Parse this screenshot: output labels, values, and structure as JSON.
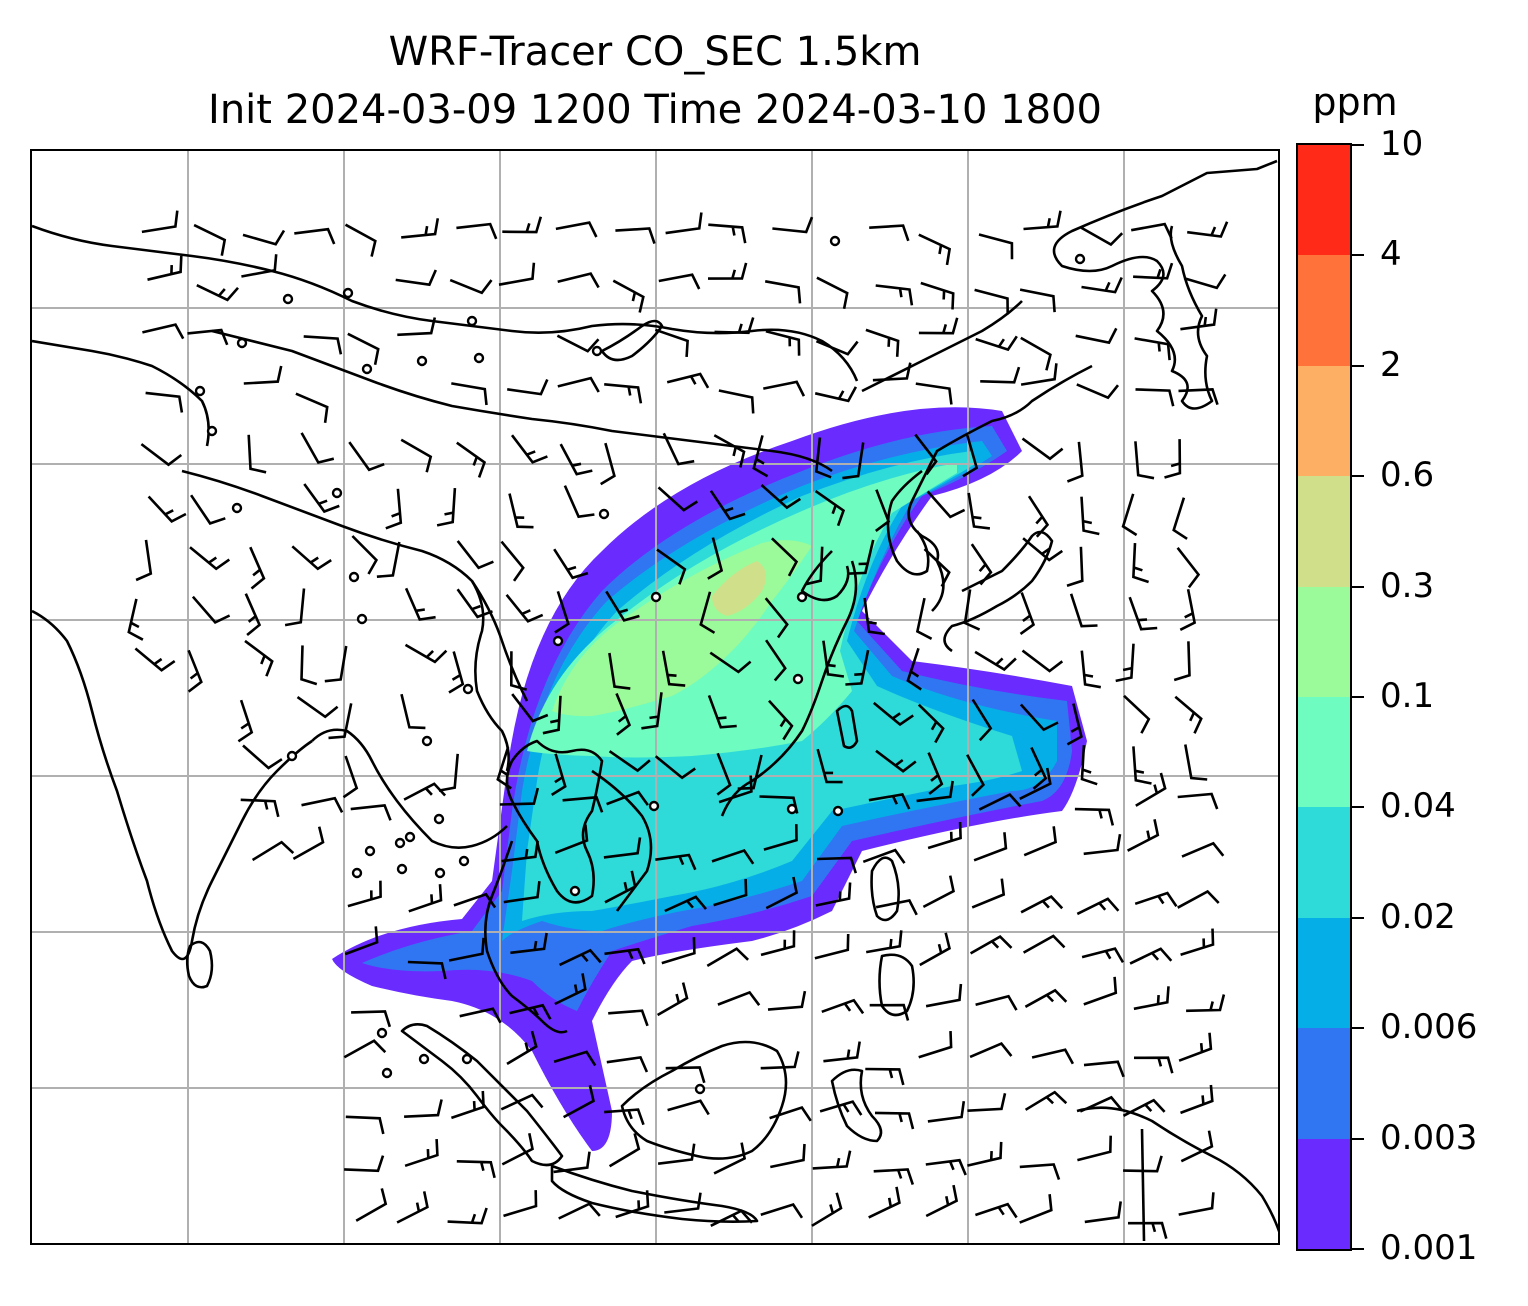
{
  "title": {
    "line1": "WRF-Tracer CO_SEC 1.5km",
    "line2": "Init 2024-03-09 1200 Time 2024-03-10 1800"
  },
  "colorbar": {
    "units": "ppm",
    "levels": [
      "0.001",
      "0.003",
      "0.006",
      "0.02",
      "0.04",
      "0.1",
      "0.3",
      "0.6",
      "2",
      "4",
      "10"
    ],
    "colors": [
      "#6a2bff",
      "#3076f2",
      "#06aee8",
      "#2edbd8",
      "#6efcc0",
      "#9bfa99",
      "#d0e08a",
      "#fdb063",
      "#ff733b",
      "#ff2a17"
    ]
  },
  "map": {
    "gridline_color": "#b0b0b0",
    "coastline_color": "#000000",
    "wind_barb_color": "#000000"
  }
}
